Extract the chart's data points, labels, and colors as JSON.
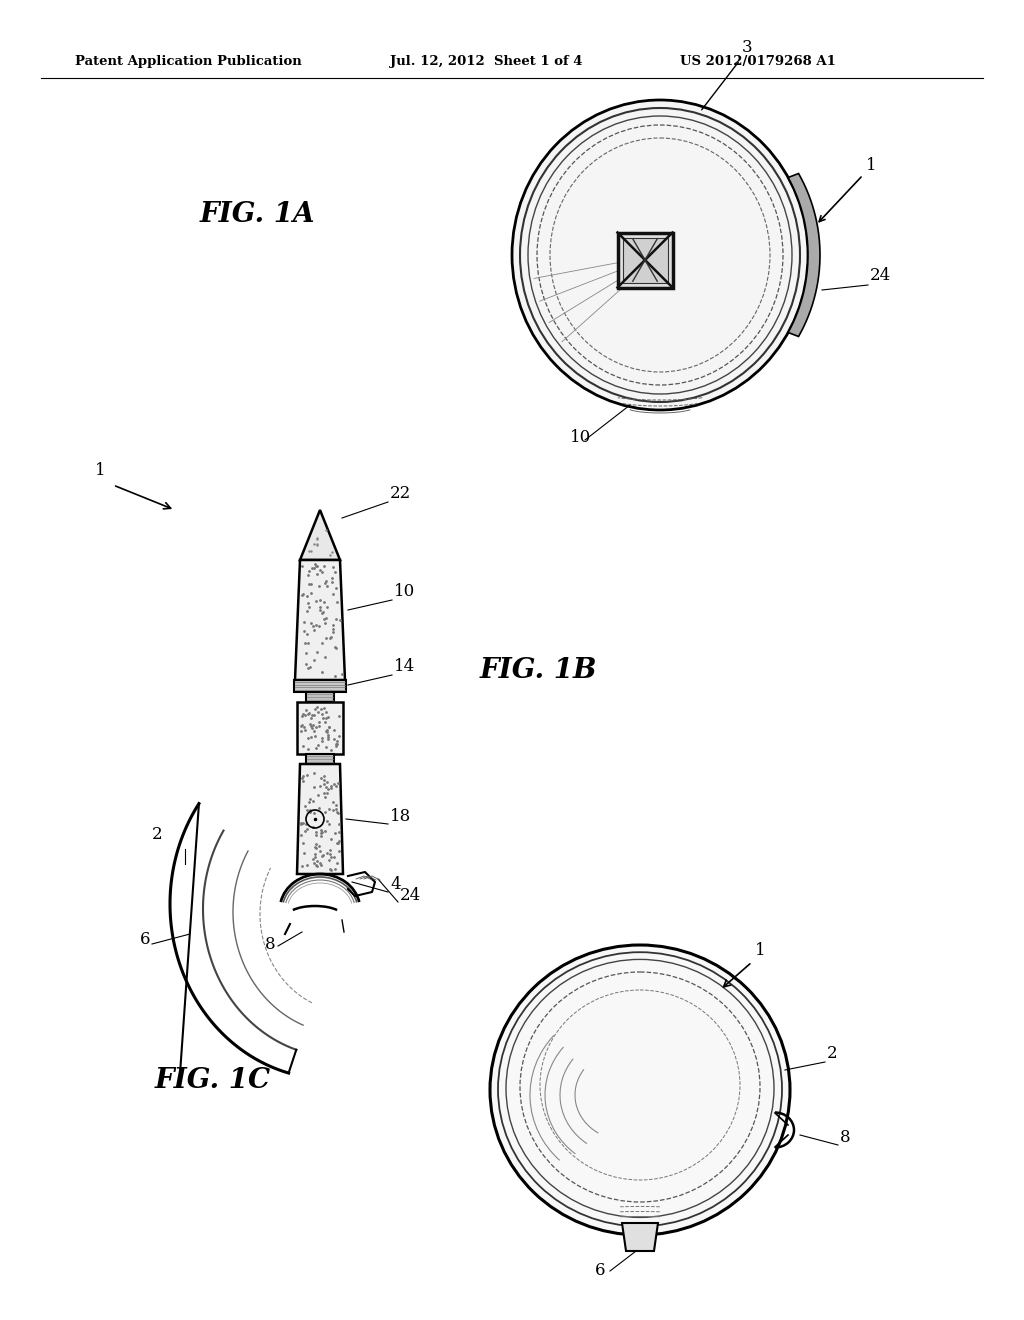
{
  "header_left": "Patent Application Publication",
  "header_mid": "Jul. 12, 2012  Sheet 1 of 4",
  "header_right": "US 2012/0179268 A1",
  "fig1a_label": "FIG. 1A",
  "fig1b_label": "FIG. 1B",
  "fig1c_label": "FIG. 1C",
  "bg_color": "#ffffff",
  "line_color": "#000000"
}
